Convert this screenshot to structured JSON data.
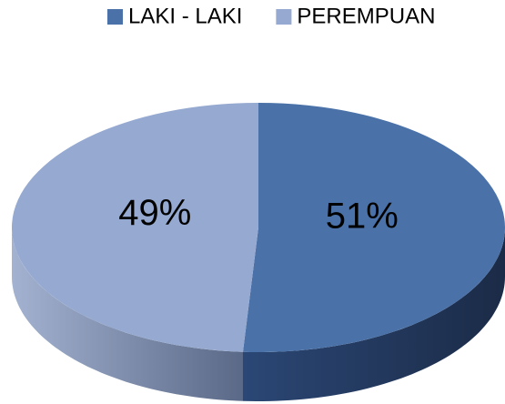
{
  "chart_data": {
    "type": "pie3d",
    "categories": [
      "LAKI - LAKI",
      "PEREMPUAN"
    ],
    "values": [
      51,
      49
    ],
    "value_labels": [
      "51%",
      "49%"
    ],
    "colors": [
      "#4a72a8",
      "#95a9d1"
    ],
    "side_colors": [
      [
        "#2b4775",
        "#1b2b47"
      ],
      [
        "#a3b2d0",
        "#5a6987"
      ]
    ],
    "legend": "top"
  }
}
